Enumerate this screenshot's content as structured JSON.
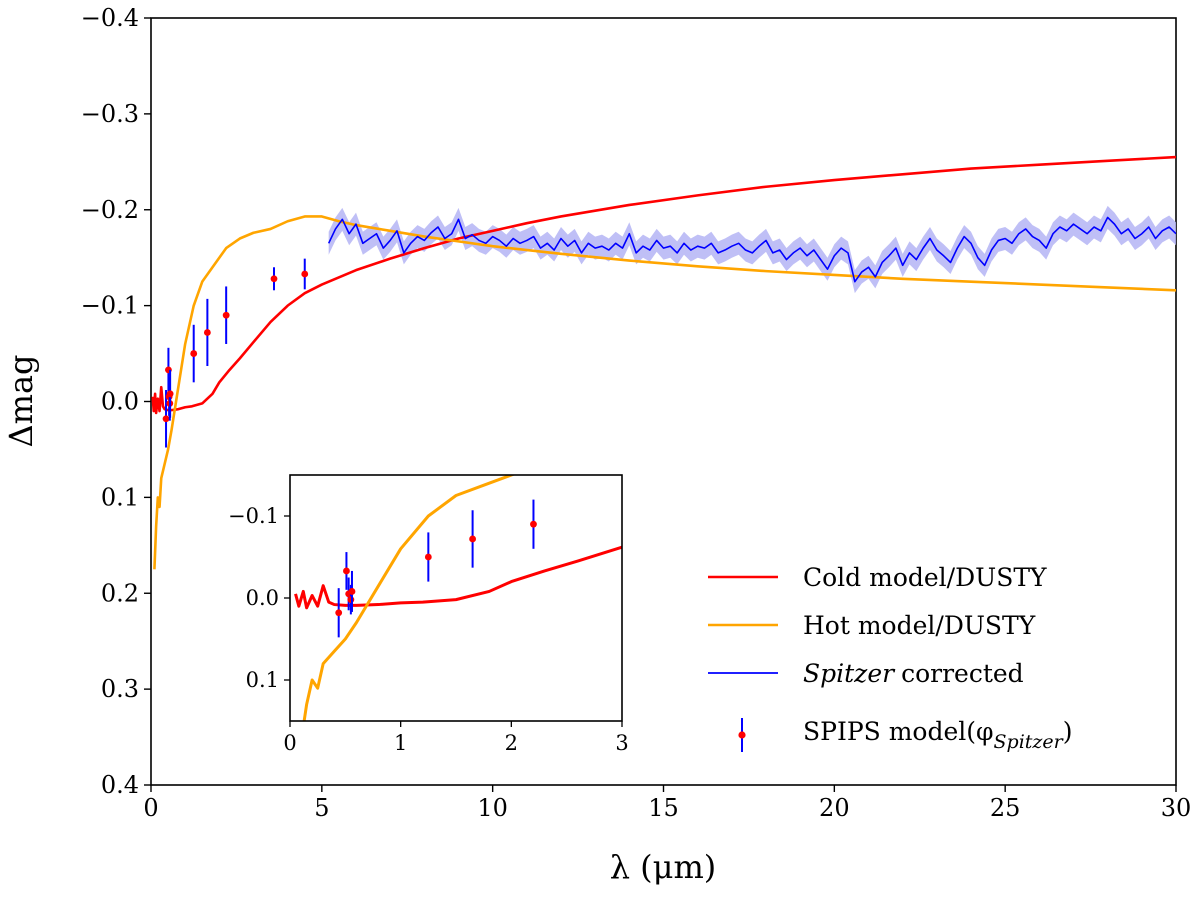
{
  "chart_data": {
    "type": "line",
    "title": "",
    "xlabel": "λ (μm)",
    "ylabel": "Δmag",
    "xlim": [
      0,
      30
    ],
    "ylim": [
      0.4,
      -0.4
    ],
    "y_inverted": true,
    "xticks": [
      0,
      5,
      10,
      15,
      20,
      25,
      30
    ],
    "xtick_labels": [
      "0",
      "5",
      "10",
      "15",
      "20",
      "25",
      "30"
    ],
    "yticks": [
      -0.4,
      -0.3,
      -0.2,
      -0.1,
      0.0,
      0.1,
      0.2,
      0.3,
      0.4
    ],
    "ytick_labels": [
      "−0.4",
      "−0.3",
      "−0.2",
      "−0.1",
      "0.0",
      "0.1",
      "0.2",
      "0.3",
      "0.4"
    ],
    "legend_position": "lower-right",
    "series": [
      {
        "name": "Cold model/DUSTY",
        "legend_label": "Cold model/DUSTY",
        "color": "#ff0000",
        "x": [
          0.05,
          0.08,
          0.12,
          0.15,
          0.2,
          0.25,
          0.3,
          0.35,
          0.4,
          0.5,
          0.6,
          0.8,
          1.0,
          1.2,
          1.5,
          1.8,
          2.0,
          2.3,
          2.6,
          3.0,
          3.5,
          4.0,
          4.5,
          5.0,
          6.0,
          7.0,
          8.0,
          9.0,
          10.0,
          11.0,
          12.0,
          14.0,
          16.0,
          18.0,
          20.0,
          22.0,
          24.0,
          26.0,
          28.0,
          30.0
        ],
        "y": [
          -0.005,
          0.01,
          -0.008,
          0.012,
          -0.003,
          0.01,
          -0.015,
          0.005,
          0.008,
          0.009,
          0.009,
          0.008,
          0.006,
          0.005,
          0.002,
          -0.008,
          -0.02,
          -0.033,
          -0.045,
          -0.062,
          -0.083,
          -0.1,
          -0.113,
          -0.122,
          -0.137,
          -0.149,
          -0.16,
          -0.17,
          -0.178,
          -0.186,
          -0.193,
          -0.205,
          -0.215,
          -0.224,
          -0.231,
          -0.237,
          -0.243,
          -0.247,
          -0.251,
          -0.255
        ]
      },
      {
        "name": "Hot model/DUSTY",
        "legend_label": "Hot model/DUSTY",
        "color": "#ffa500",
        "x": [
          0.1,
          0.15,
          0.2,
          0.25,
          0.3,
          0.4,
          0.5,
          0.6,
          0.8,
          1.0,
          1.25,
          1.5,
          1.8,
          2.2,
          2.6,
          3.0,
          3.5,
          4.0,
          4.5,
          5.0,
          5.5,
          6.0,
          7.0,
          8.0,
          9.0,
          10.0,
          12.0,
          14.0,
          16.0,
          18.0,
          20.0,
          22.0,
          24.0,
          26.0,
          28.0,
          30.0
        ],
        "y": [
          0.175,
          0.13,
          0.1,
          0.11,
          0.08,
          0.065,
          0.05,
          0.03,
          -0.015,
          -0.06,
          -0.1,
          -0.125,
          -0.14,
          -0.16,
          -0.17,
          -0.176,
          -0.18,
          -0.188,
          -0.193,
          -0.193,
          -0.188,
          -0.184,
          -0.178,
          -0.172,
          -0.167,
          -0.162,
          -0.154,
          -0.147,
          -0.141,
          -0.136,
          -0.132,
          -0.128,
          -0.125,
          -0.122,
          -0.119,
          -0.116
        ]
      },
      {
        "name": "Spitzer corrected",
        "legend_label": "corrected",
        "legend_italic": "Spitzer",
        "color": "#0000ff",
        "band_color": "#b4b4f5",
        "band_halfwidth": 0.012,
        "x": [
          5.2,
          5.4,
          5.6,
          5.8,
          6.0,
          6.2,
          6.4,
          6.6,
          6.8,
          7.0,
          7.2,
          7.4,
          7.6,
          7.8,
          8.0,
          8.2,
          8.4,
          8.6,
          8.8,
          9.0,
          9.2,
          9.4,
          9.6,
          9.8,
          10.0,
          10.2,
          10.4,
          10.6,
          10.8,
          11.0,
          11.2,
          11.4,
          11.6,
          11.8,
          12.0,
          12.2,
          12.4,
          12.6,
          12.8,
          13.0,
          13.2,
          13.4,
          13.6,
          13.8,
          14.0,
          14.2,
          14.4,
          14.6,
          14.8,
          15.0,
          15.2,
          15.4,
          15.6,
          15.8,
          16.0,
          16.2,
          16.4,
          16.6,
          16.8,
          17.0,
          17.2,
          17.4,
          17.6,
          17.8,
          18.0,
          18.2,
          18.4,
          18.6,
          18.8,
          19.0,
          19.2,
          19.4,
          19.6,
          19.8,
          20.0,
          20.2,
          20.4,
          20.6,
          20.8,
          21.0,
          21.2,
          21.4,
          21.6,
          21.8,
          22.0,
          22.2,
          22.4,
          22.6,
          22.8,
          23.0,
          23.2,
          23.4,
          23.6,
          23.8,
          24.0,
          24.2,
          24.4,
          24.6,
          24.8,
          25.0,
          25.2,
          25.4,
          25.6,
          25.8,
          26.0,
          26.2,
          26.4,
          26.6,
          26.8,
          27.0,
          27.2,
          27.4,
          27.6,
          27.8,
          28.0,
          28.2,
          28.4,
          28.6,
          28.8,
          29.0,
          29.2,
          29.4,
          29.6,
          29.8,
          30.0
        ],
        "y": [
          -0.165,
          -0.18,
          -0.19,
          -0.175,
          -0.185,
          -0.165,
          -0.17,
          -0.175,
          -0.16,
          -0.168,
          -0.178,
          -0.155,
          -0.165,
          -0.172,
          -0.168,
          -0.176,
          -0.182,
          -0.17,
          -0.175,
          -0.19,
          -0.17,
          -0.174,
          -0.168,
          -0.165,
          -0.172,
          -0.168,
          -0.162,
          -0.17,
          -0.165,
          -0.168,
          -0.172,
          -0.16,
          -0.165,
          -0.158,
          -0.17,
          -0.162,
          -0.168,
          -0.155,
          -0.165,
          -0.16,
          -0.162,
          -0.158,
          -0.165,
          -0.16,
          -0.175,
          -0.155,
          -0.162,
          -0.158,
          -0.168,
          -0.16,
          -0.162,
          -0.155,
          -0.165,
          -0.158,
          -0.162,
          -0.16,
          -0.165,
          -0.155,
          -0.158,
          -0.162,
          -0.165,
          -0.158,
          -0.155,
          -0.162,
          -0.168,
          -0.155,
          -0.158,
          -0.148,
          -0.155,
          -0.16,
          -0.152,
          -0.158,
          -0.148,
          -0.138,
          -0.152,
          -0.16,
          -0.155,
          -0.125,
          -0.135,
          -0.14,
          -0.13,
          -0.145,
          -0.152,
          -0.16,
          -0.142,
          -0.155,
          -0.148,
          -0.16,
          -0.17,
          -0.158,
          -0.152,
          -0.145,
          -0.16,
          -0.172,
          -0.165,
          -0.15,
          -0.142,
          -0.158,
          -0.168,
          -0.17,
          -0.165,
          -0.175,
          -0.18,
          -0.172,
          -0.168,
          -0.16,
          -0.175,
          -0.182,
          -0.178,
          -0.185,
          -0.18,
          -0.175,
          -0.182,
          -0.178,
          -0.192,
          -0.185,
          -0.175,
          -0.18,
          -0.17,
          -0.175,
          -0.182,
          -0.17,
          -0.178,
          -0.182,
          -0.175
        ]
      }
    ],
    "points": {
      "name": "SPIPS model(φSpitzer)",
      "legend_label": "SPIPS model(φ",
      "legend_sub": "Spitzer",
      "legend_close": ")",
      "marker_color": "#ff0000",
      "errorbar_color": "#0000ff",
      "x": [
        0.44,
        0.51,
        0.53,
        0.55,
        0.56,
        1.25,
        1.65,
        2.2,
        3.6,
        4.5
      ],
      "y": [
        0.018,
        -0.033,
        -0.005,
        0.002,
        -0.008,
        -0.05,
        -0.072,
        -0.09,
        -0.128,
        -0.133
      ],
      "yerr": [
        0.03,
        0.023,
        0.02,
        0.018,
        0.025,
        0.03,
        0.035,
        0.03,
        0.012,
        0.016
      ]
    },
    "inset": {
      "xlim": [
        0,
        3
      ],
      "ylim": [
        0.15,
        -0.15
      ],
      "xticks": [
        0,
        1,
        2,
        3
      ],
      "xtick_labels": [
        "0",
        "1",
        "2",
        "3"
      ],
      "yticks": [
        -0.1,
        0.0,
        0.1
      ],
      "ytick_labels": [
        "−0.1",
        "0.0",
        "0.1"
      ]
    }
  }
}
